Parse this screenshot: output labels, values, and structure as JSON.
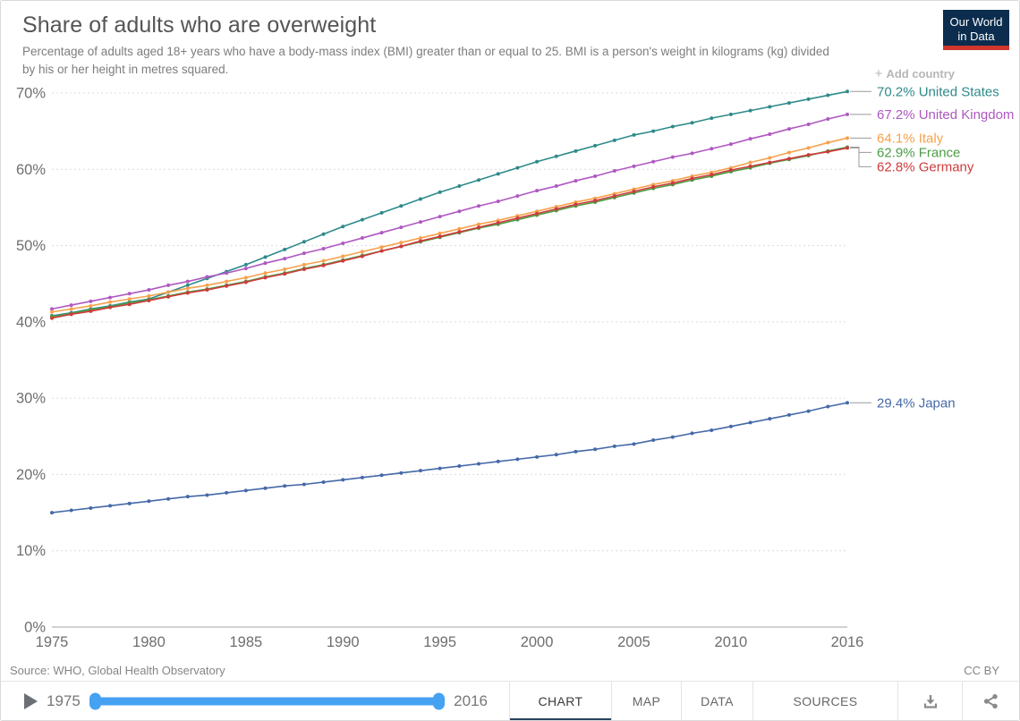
{
  "header": {
    "title": "Share of adults who are overweight",
    "subtitle": "Percentage of adults aged 18+ years who have a body-mass index (BMI) greater than or equal to 25. BMI is a person's weight in kilograms (kg) divided by his or her height in metres squared.",
    "logo_line1": "Our World",
    "logo_line2": "in Data",
    "add_country_plus": "+",
    "add_country_label": "Add country"
  },
  "chart_data": {
    "type": "line",
    "title": "Share of adults who are overweight",
    "xlabel": "",
    "ylabel": "",
    "ylim": [
      0,
      70
    ],
    "y_ticks": [
      0,
      10,
      20,
      30,
      40,
      50,
      60,
      70
    ],
    "y_tick_suffix": "%",
    "x_ticks": [
      1975,
      1980,
      1985,
      1990,
      1995,
      2000,
      2005,
      2010,
      2016
    ],
    "grid": "dashed-horizontal",
    "legend_position": "right-end-labels",
    "x": [
      1975,
      1976,
      1977,
      1978,
      1979,
      1980,
      1981,
      1982,
      1983,
      1984,
      1985,
      1986,
      1987,
      1988,
      1989,
      1990,
      1991,
      1992,
      1993,
      1994,
      1995,
      1996,
      1997,
      1998,
      1999,
      2000,
      2001,
      2002,
      2003,
      2004,
      2005,
      2006,
      2007,
      2008,
      2009,
      2010,
      2011,
      2012,
      2013,
      2014,
      2015,
      2016
    ],
    "series": [
      {
        "name": "United States",
        "color": "#2e8a8a",
        "end_value_label": "70.2%",
        "values": [
          40.8,
          41.2,
          41.7,
          42.1,
          42.6,
          43.0,
          43.9,
          44.8,
          45.7,
          46.6,
          47.5,
          48.5,
          49.5,
          50.5,
          51.5,
          52.5,
          53.4,
          54.3,
          55.2,
          56.1,
          57.0,
          57.8,
          58.6,
          59.4,
          60.2,
          61.0,
          61.7,
          62.4,
          63.1,
          63.8,
          64.5,
          65.0,
          65.6,
          66.1,
          66.7,
          67.2,
          67.7,
          68.2,
          68.7,
          69.2,
          69.7,
          70.2
        ]
      },
      {
        "name": "United Kingdom",
        "color": "#af58c1",
        "end_value_label": "67.2%",
        "values": [
          41.7,
          42.2,
          42.7,
          43.2,
          43.7,
          44.2,
          44.8,
          45.3,
          45.9,
          46.4,
          47.0,
          47.7,
          48.3,
          49.0,
          49.6,
          50.3,
          51.0,
          51.7,
          52.4,
          53.1,
          53.8,
          54.5,
          55.2,
          55.8,
          56.5,
          57.2,
          57.8,
          58.5,
          59.1,
          59.8,
          60.4,
          61.0,
          61.6,
          62.1,
          62.7,
          63.3,
          64.0,
          64.6,
          65.3,
          65.9,
          66.6,
          67.2
        ]
      },
      {
        "name": "Italy",
        "color": "#f6a14c",
        "end_value_label": "64.1%",
        "values": [
          41.3,
          41.7,
          42.1,
          42.6,
          43.0,
          43.4,
          43.9,
          44.4,
          44.8,
          45.3,
          45.8,
          46.4,
          46.9,
          47.5,
          48.0,
          48.6,
          49.2,
          49.8,
          50.4,
          51.0,
          51.6,
          52.2,
          52.8,
          53.3,
          53.9,
          54.5,
          55.1,
          55.7,
          56.2,
          56.8,
          57.4,
          58.0,
          58.5,
          59.1,
          59.6,
          60.2,
          60.9,
          61.5,
          62.2,
          62.8,
          63.5,
          64.1
        ]
      },
      {
        "name": "France",
        "color": "#4c9c45",
        "end_value_label": "62.9%",
        "values": [
          40.7,
          41.1,
          41.6,
          42.0,
          42.5,
          42.9,
          43.4,
          43.9,
          44.3,
          44.8,
          45.3,
          45.9,
          46.4,
          47.0,
          47.5,
          48.1,
          48.7,
          49.3,
          49.9,
          50.5,
          51.1,
          51.7,
          52.3,
          52.8,
          53.4,
          54.0,
          54.6,
          55.2,
          55.7,
          56.3,
          56.9,
          57.5,
          58.0,
          58.6,
          59.1,
          59.7,
          60.2,
          60.8,
          61.3,
          61.8,
          62.4,
          62.9
        ]
      },
      {
        "name": "Germany",
        "color": "#ce3b3b",
        "end_value_label": "62.8%",
        "values": [
          40.5,
          41.0,
          41.4,
          41.9,
          42.3,
          42.8,
          43.3,
          43.8,
          44.2,
          44.7,
          45.2,
          45.8,
          46.3,
          46.9,
          47.4,
          48.0,
          48.6,
          49.3,
          49.9,
          50.6,
          51.2,
          51.8,
          52.4,
          53.0,
          53.6,
          54.2,
          54.8,
          55.4,
          55.9,
          56.5,
          57.1,
          57.7,
          58.2,
          58.8,
          59.3,
          59.9,
          60.4,
          60.9,
          61.4,
          61.9,
          62.3,
          62.8
        ]
      },
      {
        "name": "Japan",
        "color": "#4569a8",
        "end_value_label": "29.4%",
        "values": [
          15.0,
          15.3,
          15.6,
          15.9,
          16.2,
          16.5,
          16.8,
          17.1,
          17.3,
          17.6,
          17.9,
          18.2,
          18.5,
          18.7,
          19.0,
          19.3,
          19.6,
          19.9,
          20.2,
          20.5,
          20.8,
          21.1,
          21.4,
          21.7,
          22.0,
          22.3,
          22.6,
          23.0,
          23.3,
          23.7,
          24.0,
          24.5,
          24.9,
          25.4,
          25.8,
          26.3,
          26.8,
          27.3,
          27.8,
          28.3,
          28.9,
          29.4
        ]
      }
    ]
  },
  "meta": {
    "source": "Source: WHO, Global Health Observatory",
    "license": "CC BY"
  },
  "controls": {
    "start_year": "1975",
    "end_year": "2016",
    "tabs": [
      {
        "label": "CHART",
        "active": true
      },
      {
        "label": "MAP",
        "active": false
      },
      {
        "label": "DATA",
        "active": false
      },
      {
        "label": "SOURCES",
        "active": false
      }
    ]
  },
  "theme": {
    "slider_blue": "#45a2f3",
    "logo_navy": "#0c2d4e",
    "logo_red": "#d0362c",
    "active_tab_underline": "#29425c",
    "gridline": "#dcdcdc",
    "axis_line": "#a3a3a3",
    "tick_text": "#6e6e6e",
    "connector": "#999999"
  }
}
